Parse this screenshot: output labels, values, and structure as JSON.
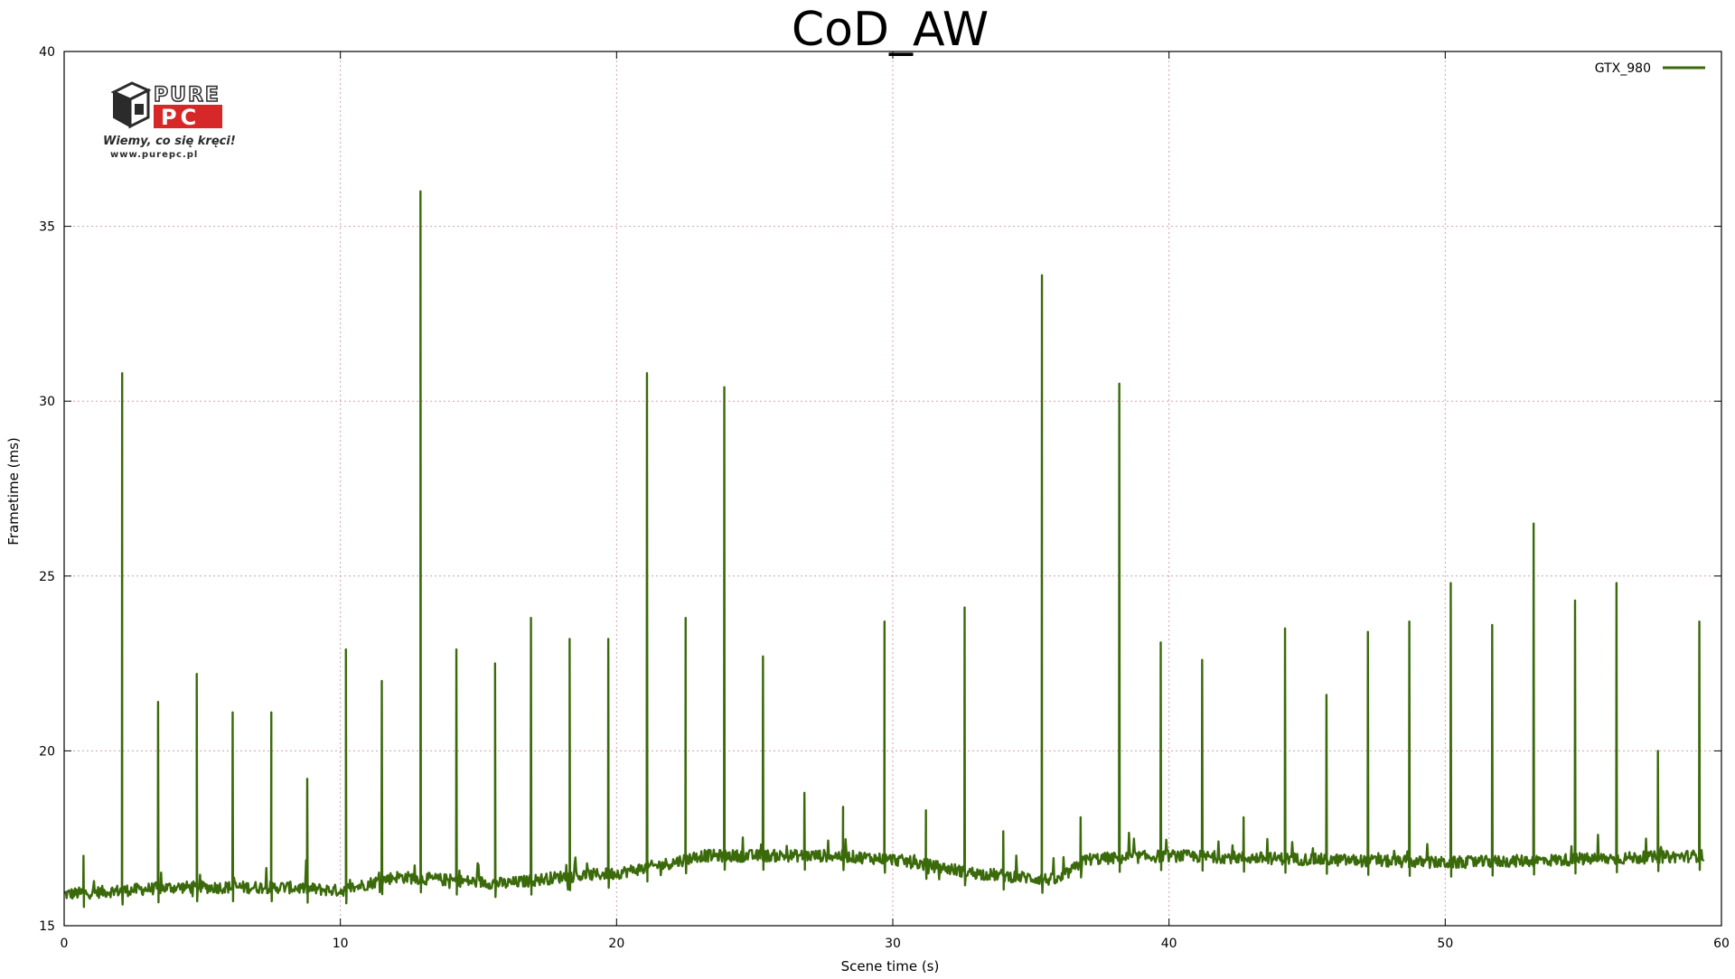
{
  "colors": {
    "series": "#3a6a0a",
    "grid": "#d4a0b0",
    "axis": "#000000",
    "logo_dark": "#2b2b2b",
    "logo_red": "#d62828"
  },
  "logo": {
    "icon_name": "purepc-box-icon",
    "word_top": "PURE",
    "word_bottom": "PC",
    "slogan": "Wiemy, co się kręci!",
    "url": "www.purepc.pl"
  },
  "chart_data": {
    "type": "line",
    "title": "CoD_AW",
    "xlabel": "Scene time (s)",
    "ylabel": "Frametime (ms)",
    "xlim": [
      0,
      60
    ],
    "ylim": [
      15,
      40
    ],
    "xticks": [
      0,
      10,
      20,
      30,
      40,
      50,
      60
    ],
    "yticks": [
      15,
      20,
      25,
      30,
      35,
      40
    ],
    "grid": true,
    "legend_position": "top-right",
    "series": [
      {
        "name": "GTX_980",
        "baseline": [
          [
            0,
            15.9
          ],
          [
            4,
            16.1
          ],
          [
            8,
            16.1
          ],
          [
            10,
            16.0
          ],
          [
            12,
            16.4
          ],
          [
            14,
            16.3
          ],
          [
            16,
            16.2
          ],
          [
            18,
            16.4
          ],
          [
            20,
            16.5
          ],
          [
            22,
            16.8
          ],
          [
            23,
            17.0
          ],
          [
            28,
            17.0
          ],
          [
            30,
            16.9
          ],
          [
            33,
            16.5
          ],
          [
            36,
            16.3
          ],
          [
            37,
            16.9
          ],
          [
            40,
            17.0
          ],
          [
            45,
            16.9
          ],
          [
            50,
            16.8
          ],
          [
            55,
            16.9
          ],
          [
            59.4,
            17.0
          ]
        ],
        "spikes": [
          [
            0.7,
            17.0
          ],
          [
            2.1,
            30.8
          ],
          [
            3.4,
            21.4
          ],
          [
            4.8,
            22.2
          ],
          [
            6.1,
            21.1
          ],
          [
            7.5,
            21.1
          ],
          [
            8.8,
            19.2
          ],
          [
            10.2,
            22.9
          ],
          [
            11.5,
            22.0
          ],
          [
            12.9,
            36.0
          ],
          [
            14.2,
            22.9
          ],
          [
            15.6,
            22.5
          ],
          [
            16.9,
            23.8
          ],
          [
            18.3,
            23.2
          ],
          [
            19.7,
            23.2
          ],
          [
            21.1,
            30.8
          ],
          [
            22.5,
            23.8
          ],
          [
            23.9,
            30.4
          ],
          [
            25.3,
            22.7
          ],
          [
            26.8,
            18.8
          ],
          [
            28.2,
            18.4
          ],
          [
            29.7,
            23.7
          ],
          [
            31.2,
            18.3
          ],
          [
            32.6,
            24.1
          ],
          [
            34.0,
            17.7
          ],
          [
            35.4,
            33.6
          ],
          [
            36.8,
            18.1
          ],
          [
            38.2,
            30.5
          ],
          [
            39.7,
            23.1
          ],
          [
            41.2,
            22.6
          ],
          [
            42.7,
            18.1
          ],
          [
            44.2,
            23.5
          ],
          [
            45.7,
            21.6
          ],
          [
            47.2,
            23.4
          ],
          [
            48.7,
            23.7
          ],
          [
            50.2,
            24.8
          ],
          [
            51.7,
            23.6
          ],
          [
            53.2,
            26.5
          ],
          [
            54.7,
            24.3
          ],
          [
            56.2,
            24.8
          ],
          [
            57.7,
            20.0
          ],
          [
            59.2,
            23.7
          ]
        ]
      }
    ]
  }
}
